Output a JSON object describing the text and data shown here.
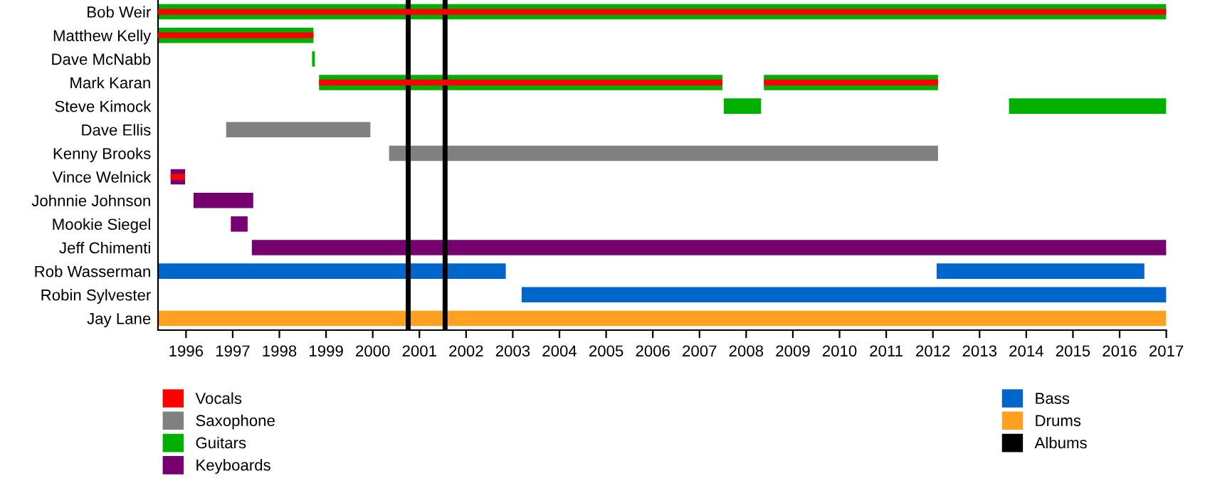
{
  "chart_data": {
    "type": "bar",
    "orientation": "horizontal",
    "categories": [
      "Bob Weir",
      "Matthew Kelly",
      "Dave McNabb",
      "Mark Karan",
      "Steve Kimock",
      "Dave Ellis",
      "Kenny Brooks",
      "Vince Welnick",
      "Johnnie Johnson",
      "Mookie Siegel",
      "Jeff Chimenti",
      "Rob Wasserman",
      "Robin Sylvester",
      "Jay Lane"
    ],
    "series": [
      {
        "name": "Vocals",
        "color": "#ff0000",
        "base": [
          1995.4,
          1995.4,
          null,
          1998.85,
          null,
          null,
          null,
          1995.67,
          null,
          null,
          null,
          null,
          null,
          null
        ],
        "values": [
          21.6,
          3.33,
          null,
          8.64,
          null,
          null,
          null,
          0.31,
          null,
          null,
          null,
          null,
          null,
          null
        ]
      },
      {
        "name": "Saxophone",
        "color": "#808080",
        "base": [
          null,
          null,
          null,
          null,
          null,
          1996.86,
          2000.35,
          null,
          null,
          null,
          null,
          null,
          null,
          null
        ],
        "values": [
          null,
          null,
          null,
          null,
          null,
          3.09,
          11.76,
          null,
          null,
          null,
          null,
          null,
          null,
          null
        ]
      },
      {
        "name": "Guitars",
        "color": "#00b000",
        "base": [
          1995.4,
          1995.4,
          1998.7,
          1998.85,
          2007.52,
          null,
          null,
          null,
          null,
          null,
          null,
          null,
          null,
          null
        ],
        "values": [
          21.6,
          3.33,
          0.06,
          8.64,
          0.8,
          null,
          null,
          null,
          null,
          null,
          null,
          null,
          null,
          null
        ]
      },
      {
        "name": "Keyboards",
        "color": "#770070",
        "base": [
          null,
          null,
          null,
          null,
          null,
          null,
          null,
          1995.67,
          1996.16,
          1996.96,
          1997.41,
          null,
          null,
          null
        ],
        "values": [
          null,
          null,
          null,
          null,
          null,
          null,
          null,
          0.31,
          1.28,
          0.36,
          19.59,
          null,
          null,
          null
        ]
      },
      {
        "name": "Bass",
        "color": "#0066cc",
        "base": [
          null,
          null,
          null,
          null,
          null,
          null,
          null,
          null,
          null,
          null,
          null,
          1995.4,
          2003.19,
          null
        ],
        "values": [
          null,
          null,
          null,
          null,
          null,
          null,
          null,
          null,
          null,
          null,
          null,
          7.45,
          13.81,
          null
        ]
      },
      {
        "name": "Drums",
        "color": "#ffa020",
        "base": [
          null,
          null,
          null,
          null,
          null,
          null,
          null,
          null,
          null,
          null,
          null,
          null,
          null,
          1995.4
        ],
        "values": [
          null,
          null,
          null,
          null,
          null,
          null,
          null,
          null,
          null,
          null,
          null,
          null,
          null,
          21.6
        ]
      },
      {
        "color": "#ff0000",
        "base": [
          null,
          null,
          null,
          2008.38,
          null,
          null,
          null,
          null,
          null,
          null,
          null,
          null,
          null,
          null
        ],
        "values": [
          null,
          null,
          null,
          3.73,
          null,
          null,
          null,
          null,
          null,
          null,
          null,
          null,
          null,
          null
        ]
      },
      {
        "color": "#00b000",
        "base": [
          null,
          null,
          null,
          2008.38,
          2013.63,
          null,
          null,
          null,
          null,
          null,
          null,
          null,
          null,
          null
        ],
        "values": [
          null,
          null,
          null,
          3.73,
          3.37,
          null,
          null,
          null,
          null,
          null,
          null,
          null,
          null,
          null
        ]
      },
      {
        "color": "#0066cc",
        "base": [
          null,
          null,
          null,
          null,
          null,
          null,
          null,
          null,
          null,
          null,
          null,
          2012.08,
          null,
          null
        ],
        "values": [
          null,
          null,
          null,
          null,
          null,
          null,
          null,
          null,
          null,
          null,
          null,
          4.45,
          null,
          null
        ]
      }
    ],
    "ref_lines": [
      {
        "axis": "x",
        "value": 2000.76,
        "label": "Albums",
        "color": "#000000"
      },
      {
        "axis": "x",
        "value": 2001.55,
        "color": "#000000"
      }
    ],
    "xlim": [
      1995.4,
      2017
    ],
    "xticks": [
      1996,
      1997,
      1998,
      1999,
      2000,
      2001,
      2002,
      2003,
      2004,
      2005,
      2006,
      2007,
      2008,
      2009,
      2010,
      2011,
      2012,
      2013,
      2014,
      2015,
      2016,
      2017
    ],
    "grid": false,
    "legend": "bottom"
  }
}
